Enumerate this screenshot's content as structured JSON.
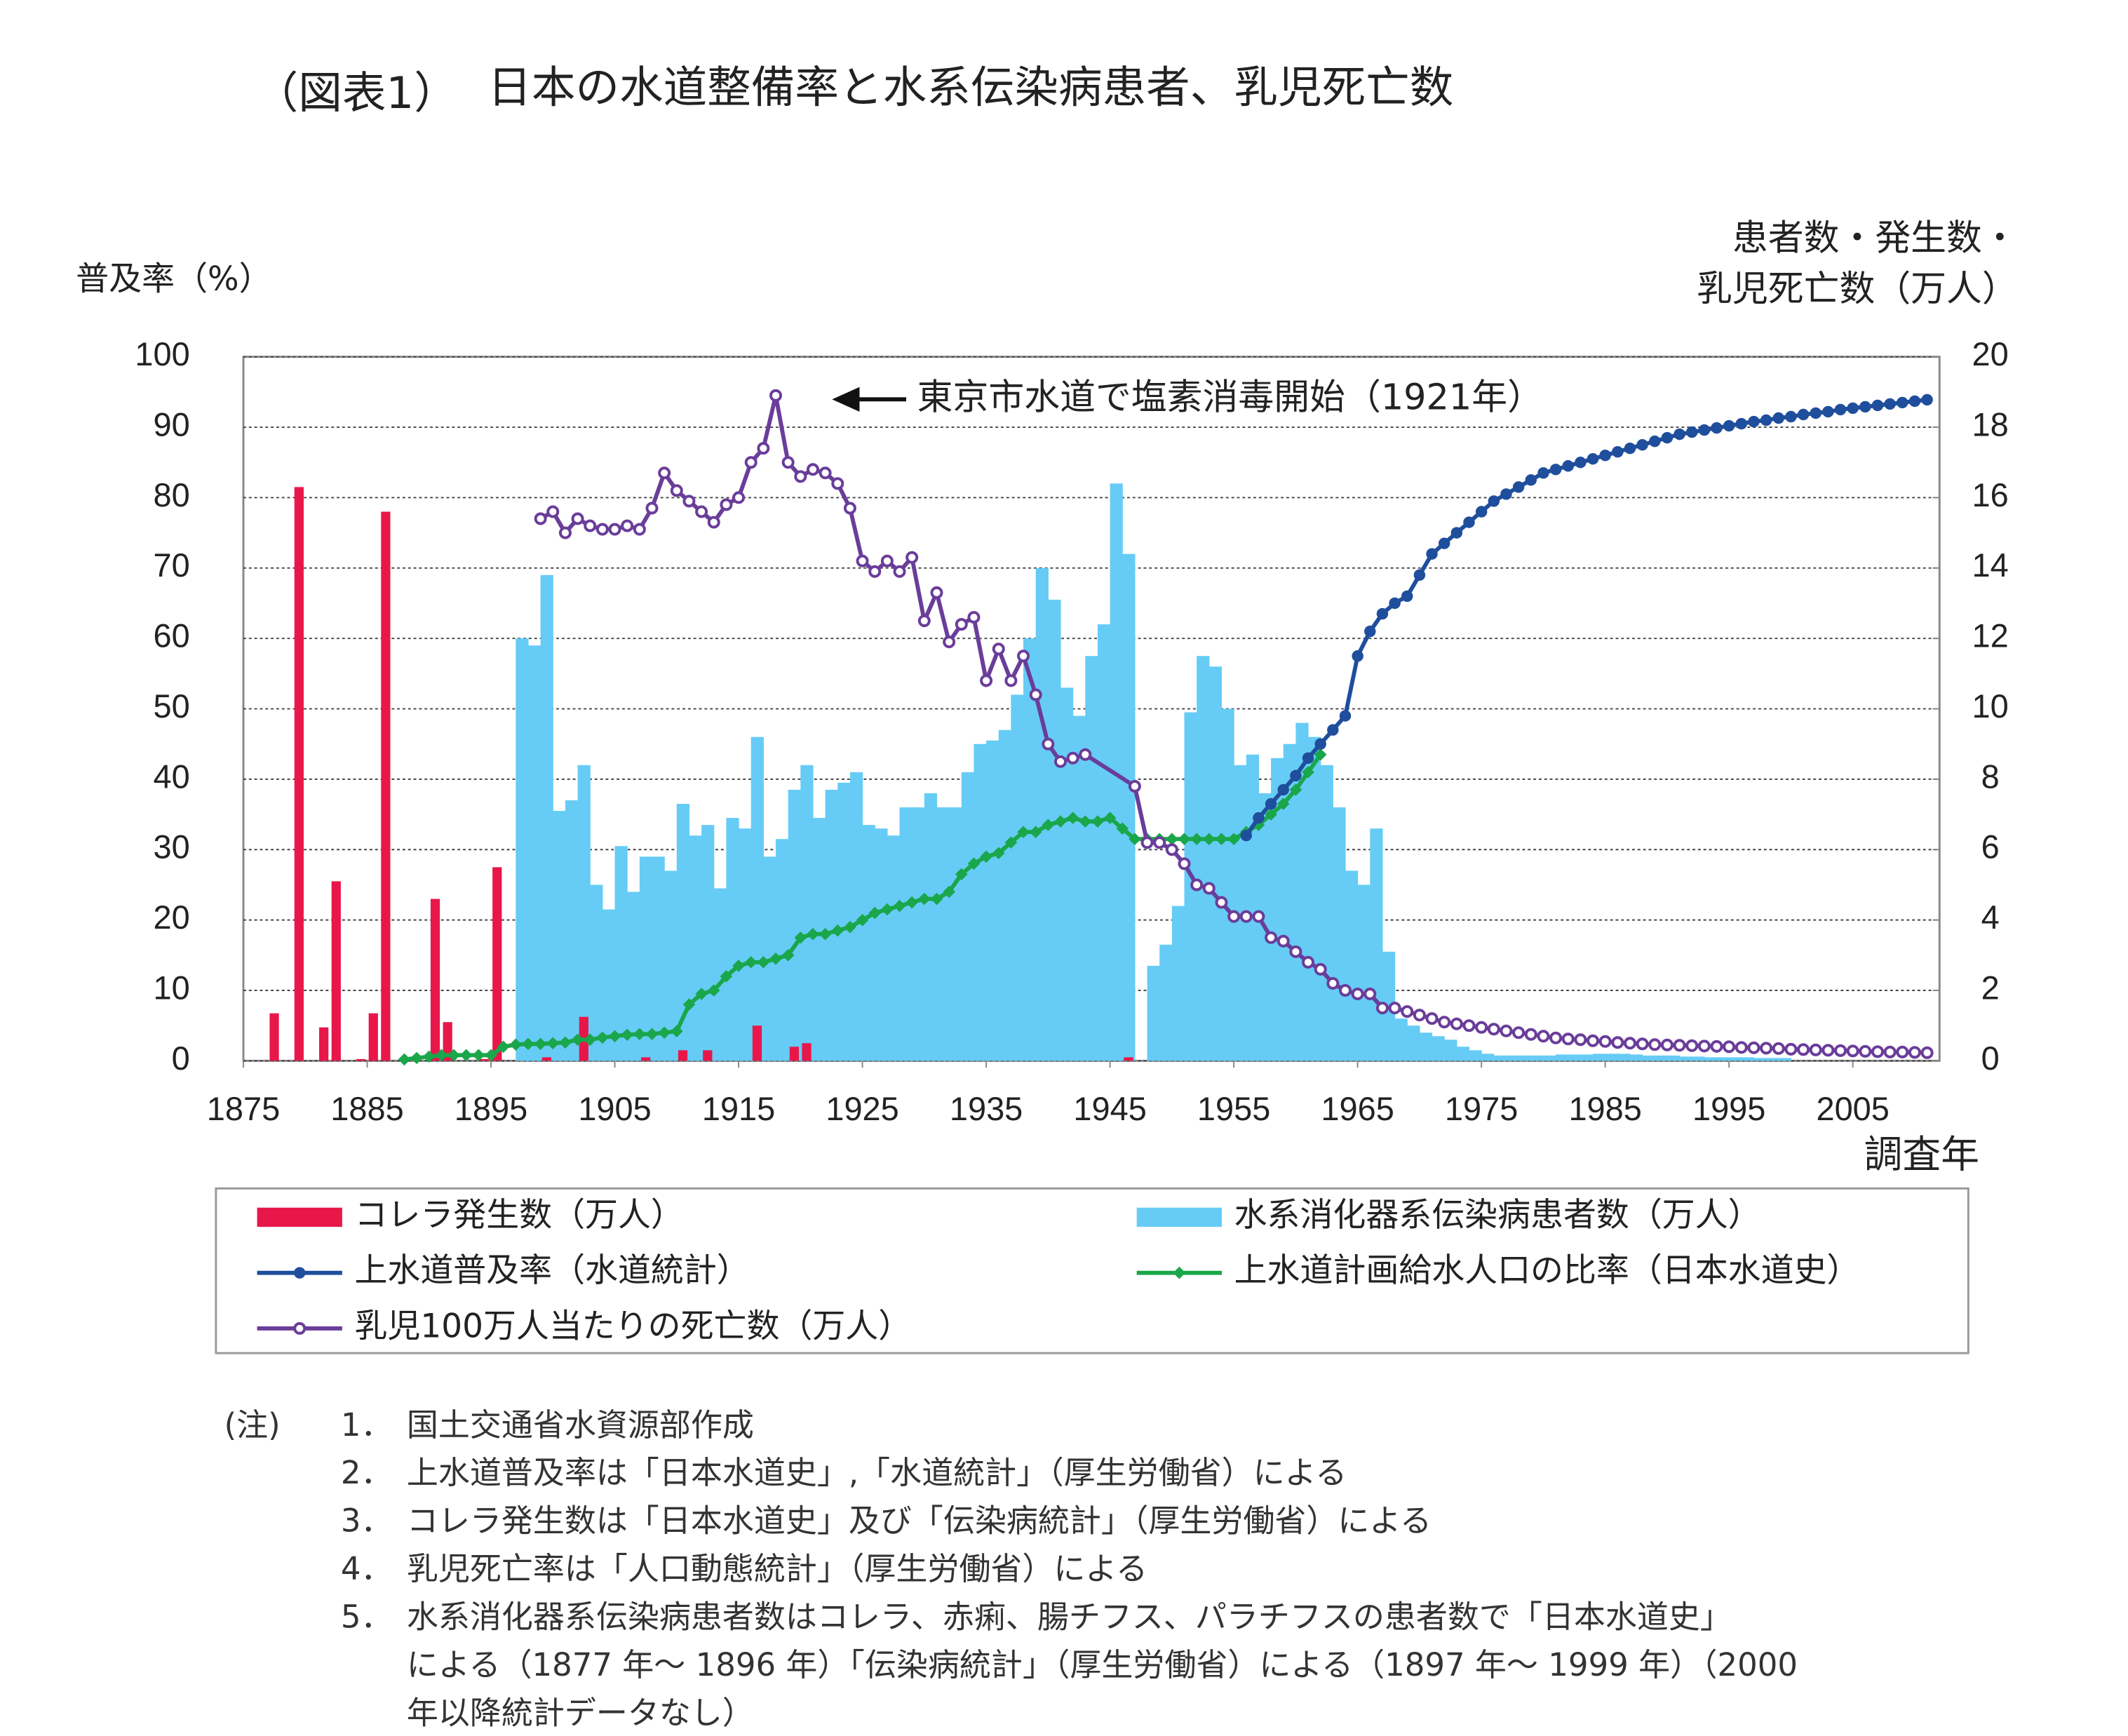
{
  "chart_data": {
    "type": "combo",
    "title": [
      "（図表1）",
      "日本の水道整備率と水系伝染病患者、乳児死亡数"
    ],
    "y_label": "普及率（%）",
    "y2_label": [
      "患者数・発生数・",
      "乳児死亡数（万人）"
    ],
    "x_label": "調査年",
    "annotation": "東京市水道で塩素消毒開始（1921年）",
    "xlim": [
      1875,
      2012
    ],
    "xticks": [
      1875,
      1885,
      1895,
      1905,
      1915,
      1925,
      1935,
      1945,
      1955,
      1965,
      1975,
      1985,
      1995,
      2005
    ],
    "ylim": [
      0,
      100
    ],
    "yticks": [
      0,
      10,
      20,
      30,
      40,
      50,
      60,
      70,
      80,
      90,
      100
    ],
    "y2lim": [
      0,
      20
    ],
    "y2ticks": [
      0,
      2,
      4,
      6,
      8,
      10,
      12,
      14,
      16,
      18,
      20
    ],
    "grid": true,
    "series": [
      {
        "name": "コレラ発生数（万人）",
        "kind": "bar",
        "color": "#e8174a",
        "axis": "y2",
        "x": [
          1877,
          1879,
          1881,
          1882,
          1884,
          1885,
          1886,
          1888,
          1890,
          1891,
          1894,
          1895,
          1899,
          1902,
          1907,
          1910,
          1912,
          1916,
          1919,
          1920,
          1946
        ],
        "values": [
          1.35,
          16.3,
          0.95,
          5.1,
          0.05,
          1.35,
          15.6,
          0.1,
          4.6,
          1.1,
          0.05,
          5.5,
          0.1,
          1.25,
          0.1,
          0.3,
          0.3,
          1.0,
          0.4,
          0.5,
          0.1
        ]
      },
      {
        "name": "水系消化器系伝染病患者数（万人）",
        "kind": "bar",
        "color": "#66ccf5",
        "axis": "y2",
        "x": [
          1897,
          1898,
          1899,
          1900,
          1901,
          1902,
          1903,
          1904,
          1905,
          1906,
          1907,
          1908,
          1909,
          1910,
          1911,
          1912,
          1913,
          1914,
          1915,
          1916,
          1917,
          1918,
          1919,
          1920,
          1921,
          1922,
          1923,
          1924,
          1925,
          1926,
          1927,
          1928,
          1929,
          1930,
          1931,
          1932,
          1933,
          1934,
          1935,
          1936,
          1937,
          1938,
          1939,
          1940,
          1941,
          1942,
          1943,
          1944,
          1945,
          1946,
          1948,
          1949,
          1950,
          1951,
          1952,
          1953,
          1954,
          1955,
          1956,
          1957,
          1958,
          1959,
          1960,
          1961,
          1962,
          1963,
          1964,
          1965,
          1966,
          1967,
          1968,
          1969,
          1970,
          1971,
          1972,
          1973,
          1974,
          1975,
          1976,
          1977,
          1978,
          1979,
          1980,
          1981,
          1982,
          1983,
          1984,
          1985,
          1986,
          1987,
          1988,
          1989,
          1990,
          1991,
          1992,
          1993,
          1994,
          1995,
          1996,
          1997,
          1998,
          1999
        ],
        "values": [
          12.0,
          11.8,
          13.8,
          7.1,
          7.4,
          8.4,
          5.0,
          4.3,
          6.1,
          4.8,
          5.8,
          5.8,
          5.4,
          7.3,
          6.4,
          6.7,
          4.9,
          6.9,
          6.6,
          9.2,
          5.8,
          6.3,
          7.7,
          8.4,
          6.9,
          7.7,
          7.9,
          8.2,
          6.7,
          6.6,
          6.4,
          7.2,
          7.2,
          7.6,
          7.2,
          7.2,
          8.2,
          9.0,
          9.1,
          9.4,
          10.4,
          12.0,
          14.0,
          13.1,
          10.6,
          9.8,
          11.5,
          12.4,
          16.4,
          14.4,
          2.7,
          3.3,
          4.4,
          9.9,
          11.5,
          11.2,
          10.0,
          8.4,
          8.7,
          7.6,
          8.6,
          9.0,
          9.6,
          9.2,
          8.4,
          7.2,
          5.4,
          5.0,
          6.6,
          3.1,
          1.2,
          1.0,
          0.8,
          0.7,
          0.6,
          0.4,
          0.3,
          0.2,
          0.15,
          0.15,
          0.15,
          0.15,
          0.15,
          0.18,
          0.18,
          0.18,
          0.2,
          0.2,
          0.2,
          0.18,
          0.15,
          0.15,
          0.15,
          0.12,
          0.12,
          0.1,
          0.1,
          0.1,
          0.1,
          0.08,
          0.08,
          0.08
        ]
      },
      {
        "name": "上水道普及率（水道統計）",
        "kind": "line",
        "marker": "circle",
        "color": "#1f4e9c",
        "axis": "y",
        "x": [
          1956,
          1957,
          1958,
          1959,
          1960,
          1961,
          1962,
          1963,
          1964,
          1965,
          1966,
          1967,
          1968,
          1969,
          1970,
          1971,
          1972,
          1973,
          1974,
          1975,
          1976,
          1977,
          1978,
          1979,
          1980,
          1981,
          1982,
          1983,
          1984,
          1985,
          1986,
          1987,
          1988,
          1989,
          1990,
          1991,
          1992,
          1993,
          1994,
          1995,
          1996,
          1997,
          1998,
          1999,
          2000,
          2001,
          2002,
          2003,
          2004,
          2005,
          2006,
          2007,
          2008,
          2009,
          2010,
          2011
        ],
        "values": [
          32,
          34.5,
          36.5,
          38.5,
          40.5,
          43,
          45,
          47,
          49,
          57.5,
          61,
          63.5,
          65,
          66,
          69,
          72,
          73.5,
          75,
          76.5,
          78,
          79.5,
          80.5,
          81.5,
          82.5,
          83.5,
          84,
          84.5,
          85,
          85.5,
          86,
          86.5,
          87,
          87.5,
          88,
          88.5,
          89,
          89.3,
          89.6,
          89.9,
          90.2,
          90.5,
          90.8,
          91,
          91.3,
          91.5,
          91.8,
          92,
          92.2,
          92.5,
          92.7,
          92.9,
          93.1,
          93.3,
          93.5,
          93.7,
          93.9
        ]
      },
      {
        "name": "上水道計画給水人口の比率（日本水道史）",
        "kind": "line",
        "marker": "diamond",
        "color": "#1aa64a",
        "axis": "y",
        "x": [
          1888,
          1889,
          1890,
          1891,
          1892,
          1893,
          1894,
          1895,
          1896,
          1897,
          1898,
          1899,
          1900,
          1901,
          1902,
          1903,
          1904,
          1905,
          1906,
          1907,
          1908,
          1909,
          1910,
          1911,
          1912,
          1913,
          1914,
          1915,
          1916,
          1917,
          1918,
          1919,
          1920,
          1921,
          1922,
          1923,
          1924,
          1925,
          1926,
          1927,
          1928,
          1929,
          1930,
          1931,
          1932,
          1933,
          1934,
          1935,
          1936,
          1937,
          1938,
          1939,
          1940,
          1941,
          1942,
          1943,
          1944,
          1945,
          1946,
          1947,
          1948,
          1949,
          1950,
          1951,
          1952,
          1953,
          1954,
          1955,
          1956,
          1957,
          1958,
          1959,
          1960,
          1961,
          1962
        ],
        "values": [
          0.2,
          0.4,
          0.6,
          0.8,
          0.8,
          0.8,
          0.8,
          0.8,
          2.0,
          2.3,
          2.4,
          2.4,
          2.5,
          2.6,
          3,
          3,
          3.3,
          3.5,
          3.7,
          3.8,
          3.8,
          4,
          4.2,
          8,
          9.5,
          10,
          12,
          13.5,
          14,
          14,
          14.5,
          15,
          17.5,
          18,
          18,
          18.5,
          19,
          20,
          21,
          21.5,
          22,
          22.5,
          23,
          23,
          24,
          26.5,
          28,
          29,
          29.5,
          31,
          32.5,
          32.5,
          33.5,
          34,
          34.5,
          34,
          34,
          34.5,
          33,
          31.5,
          31.5,
          31.5,
          31.5,
          31.5,
          31.5,
          31.5,
          31.5,
          31.5,
          32.5,
          33.5,
          35,
          36.5,
          38.5,
          41,
          43.5
        ]
      },
      {
        "name": "乳児100万人当たりの死亡数（万人）",
        "kind": "line",
        "marker": "open-circle",
        "color": "#6a3d9a",
        "axis": "y2",
        "x": [
          1899,
          1900,
          1901,
          1902,
          1903,
          1904,
          1905,
          1906,
          1907,
          1908,
          1909,
          1910,
          1911,
          1912,
          1913,
          1914,
          1915,
          1916,
          1917,
          1918,
          1919,
          1920,
          1921,
          1922,
          1923,
          1924,
          1925,
          1926,
          1927,
          1928,
          1929,
          1930,
          1931,
          1932,
          1933,
          1934,
          1935,
          1936,
          1937,
          1938,
          1939,
          1940,
          1941,
          1942,
          1943,
          1947,
          1948,
          1949,
          1950,
          1951,
          1952,
          1953,
          1954,
          1955,
          1956,
          1957,
          1958,
          1959,
          1960,
          1961,
          1962,
          1963,
          1964,
          1965,
          1966,
          1967,
          1968,
          1969,
          1970,
          1971,
          1972,
          1973,
          1974,
          1975,
          1976,
          1977,
          1978,
          1979,
          1980,
          1981,
          1982,
          1983,
          1984,
          1985,
          1986,
          1987,
          1988,
          1989,
          1990,
          1991,
          1992,
          1993,
          1994,
          1995,
          1996,
          1997,
          1998,
          1999,
          2000,
          2001,
          2002,
          2003,
          2004,
          2005,
          2006,
          2007,
          2008,
          2009,
          2010,
          2011
        ],
        "values": [
          15.4,
          15.6,
          15.0,
          15.4,
          15.2,
          15.1,
          15.1,
          15.2,
          15.1,
          15.7,
          16.7,
          16.2,
          15.9,
          15.6,
          15.3,
          15.8,
          16.0,
          17.0,
          17.4,
          18.9,
          17.0,
          16.6,
          16.8,
          16.7,
          16.4,
          15.7,
          14.2,
          13.9,
          14.2,
          13.9,
          14.3,
          12.5,
          13.3,
          11.9,
          12.4,
          12.6,
          10.8,
          11.7,
          10.8,
          11.5,
          10.4,
          9.0,
          8.5,
          8.6,
          8.7,
          7.8,
          6.2,
          6.2,
          6.0,
          5.6,
          5.0,
          4.9,
          4.5,
          4.1,
          4.1,
          4.1,
          3.5,
          3.4,
          3.1,
          2.8,
          2.6,
          2.2,
          2.0,
          1.9,
          1.9,
          1.5,
          1.5,
          1.4,
          1.3,
          1.2,
          1.1,
          1.05,
          1.0,
          0.95,
          0.9,
          0.85,
          0.8,
          0.75,
          0.7,
          0.65,
          0.62,
          0.6,
          0.57,
          0.55,
          0.52,
          0.5,
          0.48,
          0.46,
          0.45,
          0.44,
          0.43,
          0.42,
          0.41,
          0.4,
          0.38,
          0.37,
          0.36,
          0.35,
          0.33,
          0.32,
          0.31,
          0.3,
          0.29,
          0.28,
          0.27,
          0.26,
          0.25,
          0.25,
          0.24,
          0.23
        ]
      }
    ]
  },
  "notes": {
    "label": "(注)",
    "items": [
      {
        "number": "1．",
        "lines": [
          "国土交通省水資源部作成"
        ]
      },
      {
        "number": "2．",
        "lines": [
          "上水道普及率は「日本水道史」,「水道統計」（厚生労働省）による"
        ]
      },
      {
        "number": "3．",
        "lines": [
          "コレラ発生数は「日本水道史」及び「伝染病統計」（厚生労働省）による"
        ]
      },
      {
        "number": "4．",
        "lines": [
          "乳児死亡率は「人口動態統計」（厚生労働省）による"
        ]
      },
      {
        "number": "5．",
        "lines": [
          "水系消化器系伝染病患者数はコレラ、赤痢、腸チフス、パラチフスの患者数で「日本水道史」",
          "による（1877 年～ 1896 年）「伝染病統計」（厚生労働省）による（1897 年～ 1999 年）（2000",
          "年以降統計データなし）"
        ]
      }
    ]
  }
}
